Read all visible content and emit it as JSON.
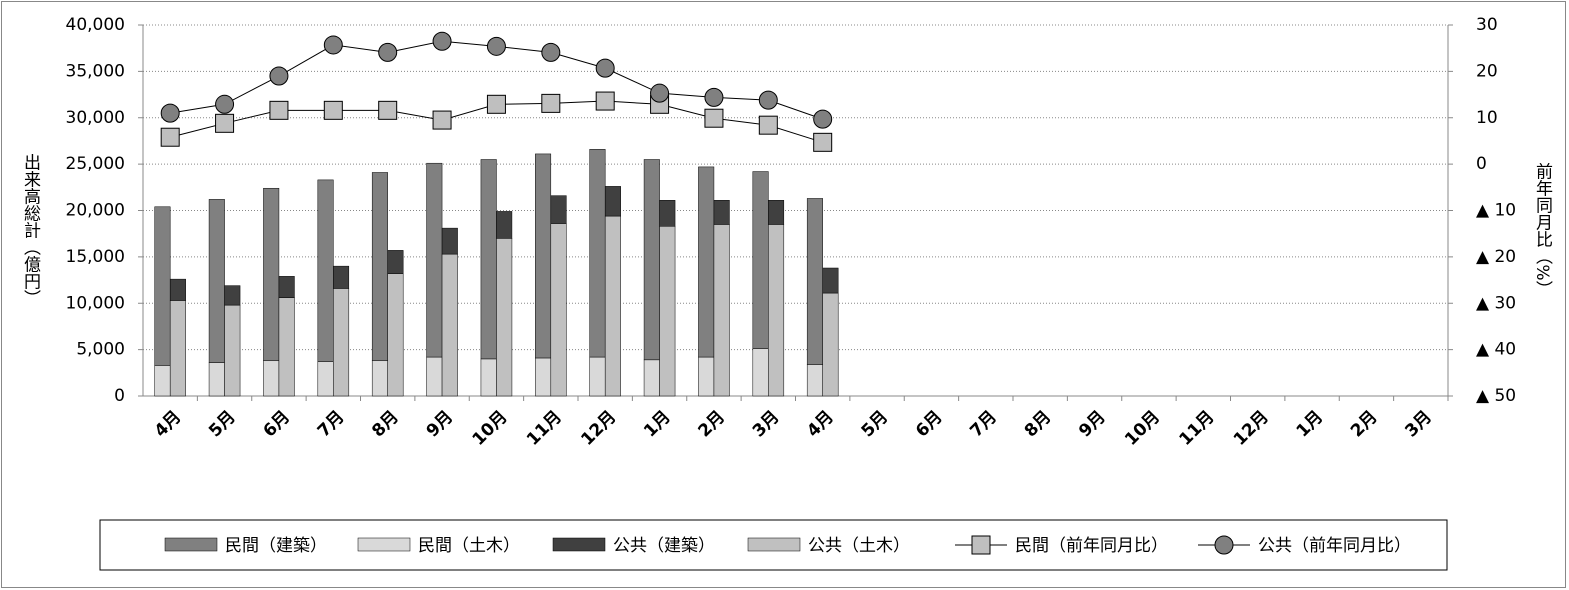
{
  "chart_data": {
    "type": "bar",
    "y_label": "出来高総計（億円）",
    "y2_label": "前年同月比（%）",
    "categories": [
      "4月",
      "5月",
      "6月",
      "7月",
      "8月",
      "9月",
      "10月",
      "11月",
      "12月",
      "1月",
      "2月",
      "3月",
      "4月",
      "5月",
      "6月",
      "7月",
      "8月",
      "9月",
      "10月",
      "11月",
      "12月",
      "1月",
      "2月",
      "3月"
    ],
    "series": [
      {
        "name": "民間（建築）",
        "type": "bar",
        "color": "#808080",
        "values": [
          17100,
          17600,
          18600,
          19600,
          20300,
          20900,
          21500,
          22000,
          22400,
          21600,
          20500,
          19100,
          17900,
          null,
          null,
          null,
          null,
          null,
          null,
          null,
          null,
          null,
          null,
          null
        ]
      },
      {
        "name": "民間（土木）",
        "type": "bar",
        "color": "#d9d9d9",
        "values": [
          3300,
          3600,
          3800,
          3700,
          3800,
          4200,
          4000,
          4100,
          4200,
          3900,
          4200,
          5100,
          3400,
          null,
          null,
          null,
          null,
          null,
          null,
          null,
          null,
          null,
          null,
          null
        ]
      },
      {
        "name": "公共（建築）",
        "type": "bar",
        "color": "#404040",
        "values": [
          2300,
          2100,
          2300,
          2400,
          2500,
          2800,
          2900,
          3000,
          3200,
          2800,
          2600,
          2600,
          2700,
          null,
          null,
          null,
          null,
          null,
          null,
          null,
          null,
          null,
          null,
          null
        ]
      },
      {
        "name": "公共（土木）",
        "type": "bar",
        "color": "#c0c0c0",
        "values": [
          10300,
          9800,
          10600,
          11600,
          13200,
          15300,
          17000,
          18600,
          19400,
          18300,
          18500,
          18500,
          11100,
          null,
          null,
          null,
          null,
          null,
          null,
          null,
          null,
          null,
          null,
          null
        ]
      },
      {
        "name": "民間（前年同月比）",
        "type": "line",
        "axis": "y2",
        "marker": "square",
        "color": "#bfbfbf",
        "values": [
          5.8,
          8.8,
          11.6,
          11.6,
          11.6,
          9.5,
          12.9,
          13.1,
          13.6,
          12.9,
          9.9,
          8.4,
          4.7,
          null,
          null,
          null,
          null,
          null,
          null,
          null,
          null,
          null,
          null,
          null
        ]
      },
      {
        "name": "公共（前年同月比）",
        "type": "line",
        "axis": "y2",
        "marker": "circle",
        "color": "#808080",
        "values": [
          11.0,
          12.9,
          19.0,
          25.7,
          24.1,
          26.5,
          25.4,
          24.1,
          20.7,
          15.3,
          14.4,
          13.8,
          9.7,
          null,
          null,
          null,
          null,
          null,
          null,
          null,
          null,
          null,
          null,
          null
        ]
      }
    ],
    "ylim": [
      0,
      40000
    ],
    "yticks": [
      0,
      {
        "value": 5000,
        "label": "5,000"
      },
      {
        "value": 10000,
        "label": "10,000"
      },
      {
        "value": 15000,
        "label": "15,000"
      },
      {
        "value": 20000,
        "label": "20,000"
      },
      {
        "value": 25000,
        "label": "25,000"
      },
      {
        "value": 30000,
        "label": "30,000"
      },
      {
        "value": 35000,
        "label": "35,000"
      },
      {
        "value": 40000,
        "label": "40,000"
      }
    ],
    "y2lim": [
      -50,
      30
    ],
    "y2ticks": [
      {
        "value": -50,
        "label": "▲ 50"
      },
      {
        "value": -40,
        "label": "▲ 40"
      },
      {
        "value": -30,
        "label": "▲ 30"
      },
      {
        "value": -20,
        "label": "▲ 20"
      },
      {
        "value": -10,
        "label": "▲ 10"
      },
      0,
      10,
      20,
      30
    ],
    "grid": true,
    "legend": "bottom"
  }
}
